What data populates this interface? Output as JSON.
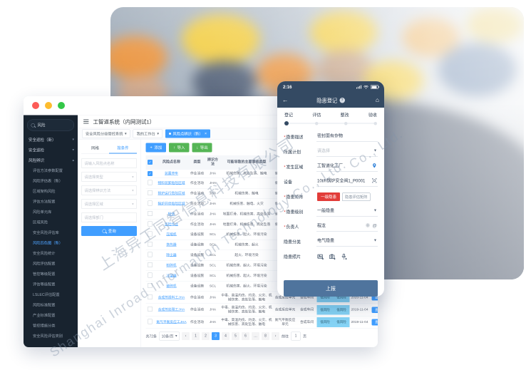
{
  "watermarks": {
    "company_cn": "上海异工同智信息科技有限公司",
    "company_en": "Shanghai Inroad Information Technology Co., Ltd.",
    "company_short": "Co., Ltd."
  },
  "desktop": {
    "app_title": "工智道系统（内网测试1）",
    "nav_tabs": [
      {
        "label": "安全风险分级管控系统",
        "active": false
      },
      {
        "label": "我的工作台",
        "active": false
      },
      {
        "label": "风险点辨识（新）",
        "active": true
      }
    ],
    "sidebar": {
      "search_value": "风险",
      "menu": [
        {
          "label": "安全巡检（新）",
          "type": "group",
          "caret": "▾"
        },
        {
          "label": "安全巡检",
          "type": "group",
          "caret": "▾"
        },
        {
          "label": "风险辨识",
          "type": "group",
          "caret": "▴"
        },
        {
          "label": "评估方法参数配置",
          "type": "item"
        },
        {
          "label": "风险评估表（新）",
          "type": "item"
        },
        {
          "label": "区域架构风险",
          "type": "item"
        },
        {
          "label": "评估方法配置",
          "type": "item"
        },
        {
          "label": "风险单元库",
          "type": "item"
        },
        {
          "label": "区域风险",
          "type": "item"
        },
        {
          "label": "安全风险评估库",
          "type": "item"
        },
        {
          "label": "风险四色图（新）",
          "type": "item",
          "active": true
        },
        {
          "label": "安全风险统计",
          "type": "item"
        },
        {
          "label": "风险评估配置",
          "type": "item"
        },
        {
          "label": "管控等级配置",
          "type": "item"
        },
        {
          "label": "评估等级配置",
          "type": "item"
        },
        {
          "label": "LSLEC评估配置",
          "type": "item"
        },
        {
          "label": "风险标准配置",
          "type": "item"
        },
        {
          "label": "产业标准配置",
          "type": "item"
        },
        {
          "label": "管控措施分类",
          "type": "item"
        },
        {
          "label": "安全风险评估类别",
          "type": "item"
        }
      ]
    },
    "filter": {
      "tabs": [
        {
          "label": "网格",
          "active": false
        },
        {
          "label": "按条件",
          "active": true
        }
      ],
      "fields": [
        {
          "placeholder": "请输入风险点名称",
          "type": "input"
        },
        {
          "placeholder": "请选择类型",
          "type": "select"
        },
        {
          "placeholder": "请选择辨识方法",
          "type": "select"
        },
        {
          "placeholder": "请选择区域",
          "type": "select"
        },
        {
          "placeholder": "请选择部门",
          "type": "input"
        }
      ],
      "search_label": "查询"
    },
    "toolbar": [
      {
        "label": "添加",
        "style": "primary",
        "icon": "+"
      },
      {
        "label": "导入",
        "style": "success",
        "icon": "↑"
      },
      {
        "label": "导出",
        "style": "success",
        "icon": "↓"
      }
    ],
    "table": {
      "headers": [
        "",
        "风险点名称",
        "类型",
        "辨识方法",
        "可能导致的主要事故类型",
        "区域",
        "",
        "",
        "",
        "",
        ""
      ],
      "rows": [
        {
          "checked": true,
          "name": "装置停车",
          "type": "作业活动",
          "method": "JHA",
          "accidents": "机械伤害、高处坠落、触电",
          "area": "储存管理单元",
          "dept": "",
          "level1": "",
          "level2": "",
          "date": "",
          "action": ""
        },
        {
          "checked": false,
          "name": "物料装卸危险区域",
          "type": "作业活动",
          "method": "JHA",
          "accidents": "",
          "area": "储存管理单元",
          "dept": "",
          "level1": "",
          "level2": "",
          "date": "",
          "action": ""
        },
        {
          "checked": false,
          "name": "锅炉运行危险区域",
          "type": "作业活动",
          "method": "JHA",
          "accidents": "机械伤害、触电",
          "area": "储存管理单元",
          "dept": "",
          "level1": "",
          "level2": "",
          "date": "",
          "action": ""
        },
        {
          "checked": false,
          "name": "锅炉开停危险区域",
          "type": "作业活动",
          "method": "JHA",
          "accidents": "机械伤害、触电、火灾",
          "area": "储存管理单元",
          "dept": "",
          "level1": "",
          "level2": "",
          "date": "",
          "action": ""
        },
        {
          "checked": false,
          "name": "检修",
          "type": "作业活动",
          "method": "JHA",
          "accidents": "地面打滑、机械伤害、高处坠落",
          "area": "储存管理单元",
          "dept": "",
          "level1": "",
          "level2": "",
          "date": "",
          "action": ""
        },
        {
          "checked": false,
          "name": "巡检作业",
          "type": "作业活动",
          "method": "JHA",
          "accidents": "地面打滑、机械伤害、高处坠落",
          "area": "储存管理单元",
          "dept": "",
          "level1": "",
          "level2": "",
          "date": "",
          "action": ""
        },
        {
          "checked": false,
          "name": "压缩机",
          "type": "设备设施",
          "method": "SCL",
          "accidents": "机械伤害、起火、环境污染",
          "area": "储运单元",
          "dept": "",
          "level1": "",
          "level2": "",
          "date": "",
          "action": ""
        },
        {
          "checked": false,
          "name": "换热器",
          "type": "设备设施",
          "method": "SCL",
          "accidents": "机械伤害、起火",
          "area": "储运单元",
          "dept": "",
          "level1": "",
          "level2": "",
          "date": "",
          "action": ""
        },
        {
          "checked": false,
          "name": "除尘器",
          "type": "设备设施",
          "method": "SCL",
          "accidents": "起火、环境污染",
          "area": "储运单元",
          "dept": "",
          "level1": "",
          "level2": "",
          "date": "",
          "action": ""
        },
        {
          "checked": false,
          "name": "粉碎机",
          "type": "设备设施",
          "method": "SCL",
          "accidents": "机械伤害、起火、环境污染",
          "area": "储运单元",
          "dept": "",
          "level1": "",
          "level2": "",
          "date": "",
          "action": ""
        },
        {
          "checked": false,
          "name": "冷凝器",
          "type": "设备设施",
          "method": "SCL",
          "accidents": "机械伤害、起火、环境污染",
          "area": "储运单元",
          "dept": "",
          "level1": "",
          "level2": "",
          "date": "",
          "action": ""
        },
        {
          "checked": false,
          "name": "破碎机",
          "type": "设备设施",
          "method": "SCL",
          "accidents": "机械伤害、起火、环境污染",
          "area": "储运单元",
          "dept": "",
          "level1": "",
          "level2": "",
          "date": "",
          "action": ""
        },
        {
          "checked": false,
          "name": "合成剂投料工JHA",
          "type": "作业活动",
          "method": "JHA",
          "accidents": "中毒、高温灼伤、灼烫、火灾、机械伤害、高处坠落、触电",
          "area": "合成反应单元",
          "dept": "合成车间",
          "level1": "低风险",
          "level2": "低风险",
          "date": "2020-11-04",
          "action": "查看"
        },
        {
          "checked": false,
          "name": "合成剂处理工JHA",
          "type": "作业活动",
          "method": "JHA",
          "accidents": "中毒、高温灼伤、灼烫、火灾、机械伤害、高处坠落、触电",
          "area": "合成反应单元",
          "dept": "合成车间",
          "level1": "低风险",
          "level2": "低风险",
          "date": "2019-11-04",
          "action": "查看"
        },
        {
          "checked": false,
          "name": "氮气平衡反应工JHA",
          "type": "作业活动",
          "method": "JHA",
          "accidents": "中毒、高温灼伤、灼烫、火灾、机械伤害、高处坠落、触电",
          "area": "氮气平衡反应单元",
          "dept": "合成车间",
          "level1": "低风险",
          "level2": "低风险",
          "date": "2019-11-04",
          "action": "查看"
        }
      ]
    },
    "pagination": {
      "total": "共72条",
      "per_page": "10条/页",
      "prev": "‹",
      "pages": [
        "1",
        "2",
        "3",
        "4",
        "5",
        "6",
        "...",
        "8"
      ],
      "active_page": "3",
      "next": "›",
      "goto_label": "前往",
      "goto_value": "1",
      "goto_suffix": "页"
    },
    "colors": {
      "accent": "#409eff",
      "success": "#55b555",
      "level_blue": "#85d3f5",
      "sidebar_bg": "#18232f"
    }
  },
  "phone": {
    "status_time": "2:16",
    "nav": {
      "title": "隐患登记",
      "badge": "?"
    },
    "steps": [
      {
        "label": "登记",
        "active": true
      },
      {
        "label": "评估",
        "active": false
      },
      {
        "label": "整改",
        "active": false
      },
      {
        "label": "验收",
        "active": false
      }
    ],
    "form": [
      {
        "label": "隐患描述",
        "required": true,
        "value": "密封面有杂物",
        "placeholder": false,
        "suffix": "none"
      },
      {
        "label": "所属计划",
        "required": false,
        "value": "请选择",
        "placeholder": true,
        "suffix": "caret"
      },
      {
        "label": "发生区域",
        "required": true,
        "value": "工智道化工厂",
        "placeholder": false,
        "suffix": "location"
      },
      {
        "label": "设备",
        "required": false,
        "value": "10t/h锅炉安全阀1_P0001",
        "placeholder": false,
        "suffix": "scan"
      },
      {
        "label": "隐患矩阵",
        "required": true,
        "badges": [
          {
            "label": "一级隐患",
            "style": "red"
          },
          {
            "label": "隐患评估矩阵",
            "style": "outline"
          }
        ]
      },
      {
        "label": "隐患级别",
        "required": true,
        "value": "一般隐患",
        "placeholder": false,
        "suffix": "caret"
      },
      {
        "label": "负责人",
        "required": true,
        "value": "程龙",
        "placeholder": false,
        "suffix": "owner"
      },
      {
        "label": "隐患分类",
        "required": false,
        "value": "电气隐患",
        "placeholder": false,
        "suffix": "caret"
      },
      {
        "label": "隐患照片",
        "required": false,
        "photo_icons": [
          "image-add-icon",
          "camera-add-icon",
          "mic-add-icon"
        ]
      }
    ],
    "submit_label": "上报",
    "colors": {
      "navbar": "#344a63",
      "danger": "#e23c39",
      "submit": "#4f749d"
    }
  }
}
